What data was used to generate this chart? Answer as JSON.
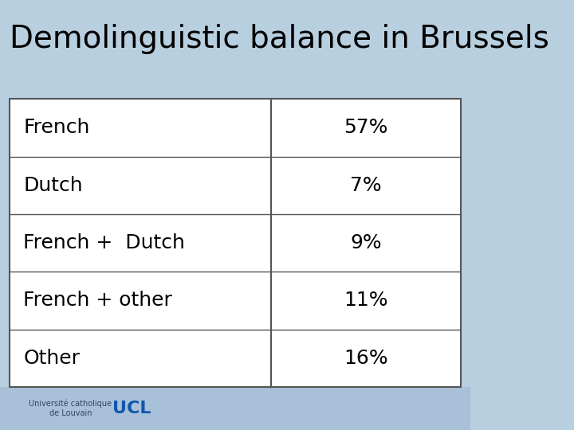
{
  "title": "Demolinguistic balance in Brussels",
  "title_fontsize": 28,
  "title_bg_color": "#b8cfe0",
  "table_bg_color": "#ffffff",
  "rows": [
    [
      "French",
      "57%"
    ],
    [
      "Dutch",
      "7%"
    ],
    [
      "French +  Dutch",
      "9%"
    ],
    [
      "French + other",
      "11%"
    ],
    [
      "Other",
      "16%"
    ]
  ],
  "label_fontsize": 18,
  "value_fontsize": 18,
  "col_split": 0.58,
  "footer_bg_color": "#a8c0d8"
}
